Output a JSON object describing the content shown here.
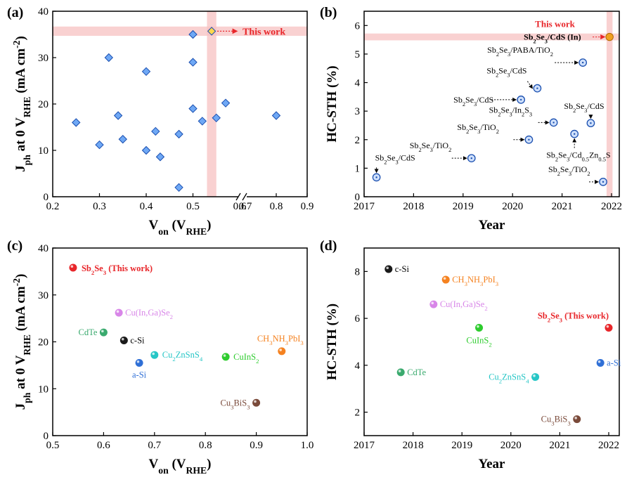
{
  "figure": {
    "panel_labels": [
      "(a)",
      "(b)",
      "(c)",
      "(d)"
    ]
  },
  "chart_data": [
    {
      "panel": "(a)",
      "type": "scatter",
      "xlabel": "V_on (V_RHE)",
      "ylabel": "J_ph at 0 V_RHE (mA cm^-2)",
      "xlim": [
        0.2,
        0.9
      ],
      "ylim": [
        0,
        40
      ],
      "xticks": [
        "0.2",
        "0.3",
        "0.4",
        "0.5",
        "0.6",
        "0.7",
        "0.8",
        "0.9"
      ],
      "yticks": [
        "0",
        "10",
        "20",
        "30",
        "40"
      ],
      "axis_break": "between 0.6 and 0.7",
      "marker_color": "#3b7fe8",
      "highlight_color": "#f7c1c1",
      "points": [
        {
          "x": 0.25,
          "y": 16.0
        },
        {
          "x": 0.3,
          "y": 11.2
        },
        {
          "x": 0.32,
          "y": 30.0
        },
        {
          "x": 0.34,
          "y": 17.5
        },
        {
          "x": 0.35,
          "y": 12.4
        },
        {
          "x": 0.4,
          "y": 27.0
        },
        {
          "x": 0.4,
          "y": 10.0
        },
        {
          "x": 0.42,
          "y": 14.1
        },
        {
          "x": 0.43,
          "y": 8.6
        },
        {
          "x": 0.47,
          "y": 13.5
        },
        {
          "x": 0.47,
          "y": 2.0
        },
        {
          "x": 0.5,
          "y": 35.0
        },
        {
          "x": 0.5,
          "y": 29.0
        },
        {
          "x": 0.5,
          "y": 19.0
        },
        {
          "x": 0.52,
          "y": 16.3
        },
        {
          "x": 0.55,
          "y": 17.0
        },
        {
          "x": 0.57,
          "y": 20.2
        },
        {
          "x": 0.8,
          "y": 17.5
        }
      ],
      "this_work": {
        "x": 0.54,
        "y": 35.7,
        "label": "This work",
        "color": "#f0a020"
      }
    },
    {
      "panel": "(b)",
      "type": "scatter",
      "xlabel": "Year",
      "ylabel": "HC-STH (%)",
      "xlim": [
        2017,
        2022
      ],
      "ylim": [
        0,
        6.5
      ],
      "xticks": [
        "2017",
        "2018",
        "2019",
        "2020",
        "2021",
        "2022"
      ],
      "yticks": [
        "0",
        "1",
        "2",
        "3",
        "4",
        "5",
        "6"
      ],
      "marker_color": "#3b7fe8",
      "highlight_color": "#f7c1c1",
      "points": [
        {
          "x": 2017.25,
          "y": 0.68,
          "label": "Sb2Se3/CdS"
        },
        {
          "x": 2019.17,
          "y": 1.35,
          "label": "Sb2Se3/TiO2"
        },
        {
          "x": 2020.33,
          "y": 2.0,
          "label": "Sb2Se3/TiO2"
        },
        {
          "x": 2020.83,
          "y": 2.6,
          "label": "Sb2Se3/In2S3"
        },
        {
          "x": 2020.17,
          "y": 3.4,
          "label": "Sb2Se3/CdS"
        },
        {
          "x": 2020.5,
          "y": 3.8,
          "label": "Sb2Se3/CdS"
        },
        {
          "x": 2021.25,
          "y": 2.2,
          "label": "Sb2Se3/Cd0.5Zn0.5S"
        },
        {
          "x": 2021.58,
          "y": 2.58,
          "label": "Sb2Se3/CdS"
        },
        {
          "x": 2021.42,
          "y": 4.7,
          "label": "Sb2Se3/PABA/TiO2"
        },
        {
          "x": 2021.83,
          "y": 0.52,
          "label": "Sb2Se3/TiO2"
        }
      ],
      "this_work": {
        "x": 2021.96,
        "y": 5.6,
        "label": "Sb2Se3/CdS (In)",
        "title": "This work",
        "color": "#f0a020"
      }
    },
    {
      "panel": "(c)",
      "type": "scatter",
      "xlabel": "V_on (V_RHE)",
      "ylabel": "J_ph at 0 V_RHE (mA cm^-2)",
      "xlim": [
        0.5,
        1.0
      ],
      "ylim": [
        0,
        40
      ],
      "xticks": [
        "0.5",
        "0.6",
        "0.7",
        "0.8",
        "0.9",
        "1.0"
      ],
      "yticks": [
        "0",
        "10",
        "20",
        "30",
        "40"
      ],
      "points": [
        {
          "x": 0.54,
          "y": 35.8,
          "label": "Sb2Se3 (This work)",
          "color": "#e8262a"
        },
        {
          "x": 0.63,
          "y": 26.2,
          "label": "Cu(In,Ga)Se2",
          "color": "#d886e8"
        },
        {
          "x": 0.6,
          "y": 22.0,
          "label": "CdTe",
          "color": "#3aaa6e"
        },
        {
          "x": 0.64,
          "y": 20.3,
          "label": "c-Si",
          "color": "#1a1a1a"
        },
        {
          "x": 0.7,
          "y": 17.2,
          "label": "Cu2ZnSnS4",
          "color": "#26c6c6"
        },
        {
          "x": 0.67,
          "y": 15.5,
          "label": "a-Si",
          "color": "#2f6fd6"
        },
        {
          "x": 0.84,
          "y": 16.8,
          "label": "CuInS2",
          "color": "#2ecc2e"
        },
        {
          "x": 0.95,
          "y": 18.0,
          "label": "CH3NH3PbI3",
          "color": "#f58220"
        },
        {
          "x": 0.9,
          "y": 7.0,
          "label": "Cu3BiS3",
          "color": "#7a4a3a"
        }
      ]
    },
    {
      "panel": "(d)",
      "type": "scatter",
      "xlabel": "Year",
      "ylabel": "HC-STH (%)",
      "xlim": [
        2017,
        2022
      ],
      "ylim": [
        1,
        9
      ],
      "xticks": [
        "2017",
        "2018",
        "2019",
        "2020",
        "2021",
        "2022"
      ],
      "yticks": [
        "2",
        "4",
        "6",
        "8"
      ],
      "points": [
        {
          "x": 2017.5,
          "y": 8.1,
          "label": "c-Si",
          "color": "#1a1a1a"
        },
        {
          "x": 2018.67,
          "y": 7.65,
          "label": "CH3NH3PbI3",
          "color": "#f58220"
        },
        {
          "x": 2018.42,
          "y": 6.6,
          "label": "Cu(In,Ga)Se2",
          "color": "#d886e8"
        },
        {
          "x": 2019.35,
          "y": 5.6,
          "label": "CuInS2",
          "color": "#2ecc2e"
        },
        {
          "x": 2017.75,
          "y": 3.7,
          "label": "CdTe",
          "color": "#3aaa6e"
        },
        {
          "x": 2020.5,
          "y": 3.5,
          "label": "Cu2ZnSnS4",
          "color": "#26c6c6"
        },
        {
          "x": 2021.83,
          "y": 4.1,
          "label": "a-Si",
          "color": "#2f6fd6"
        },
        {
          "x": 2021.35,
          "y": 1.7,
          "label": "Cu3BiS3",
          "color": "#7a4a3a"
        },
        {
          "x": 2022.0,
          "y": 5.6,
          "label": "Sb2Se3 (This work)",
          "color": "#e8262a"
        }
      ]
    }
  ]
}
